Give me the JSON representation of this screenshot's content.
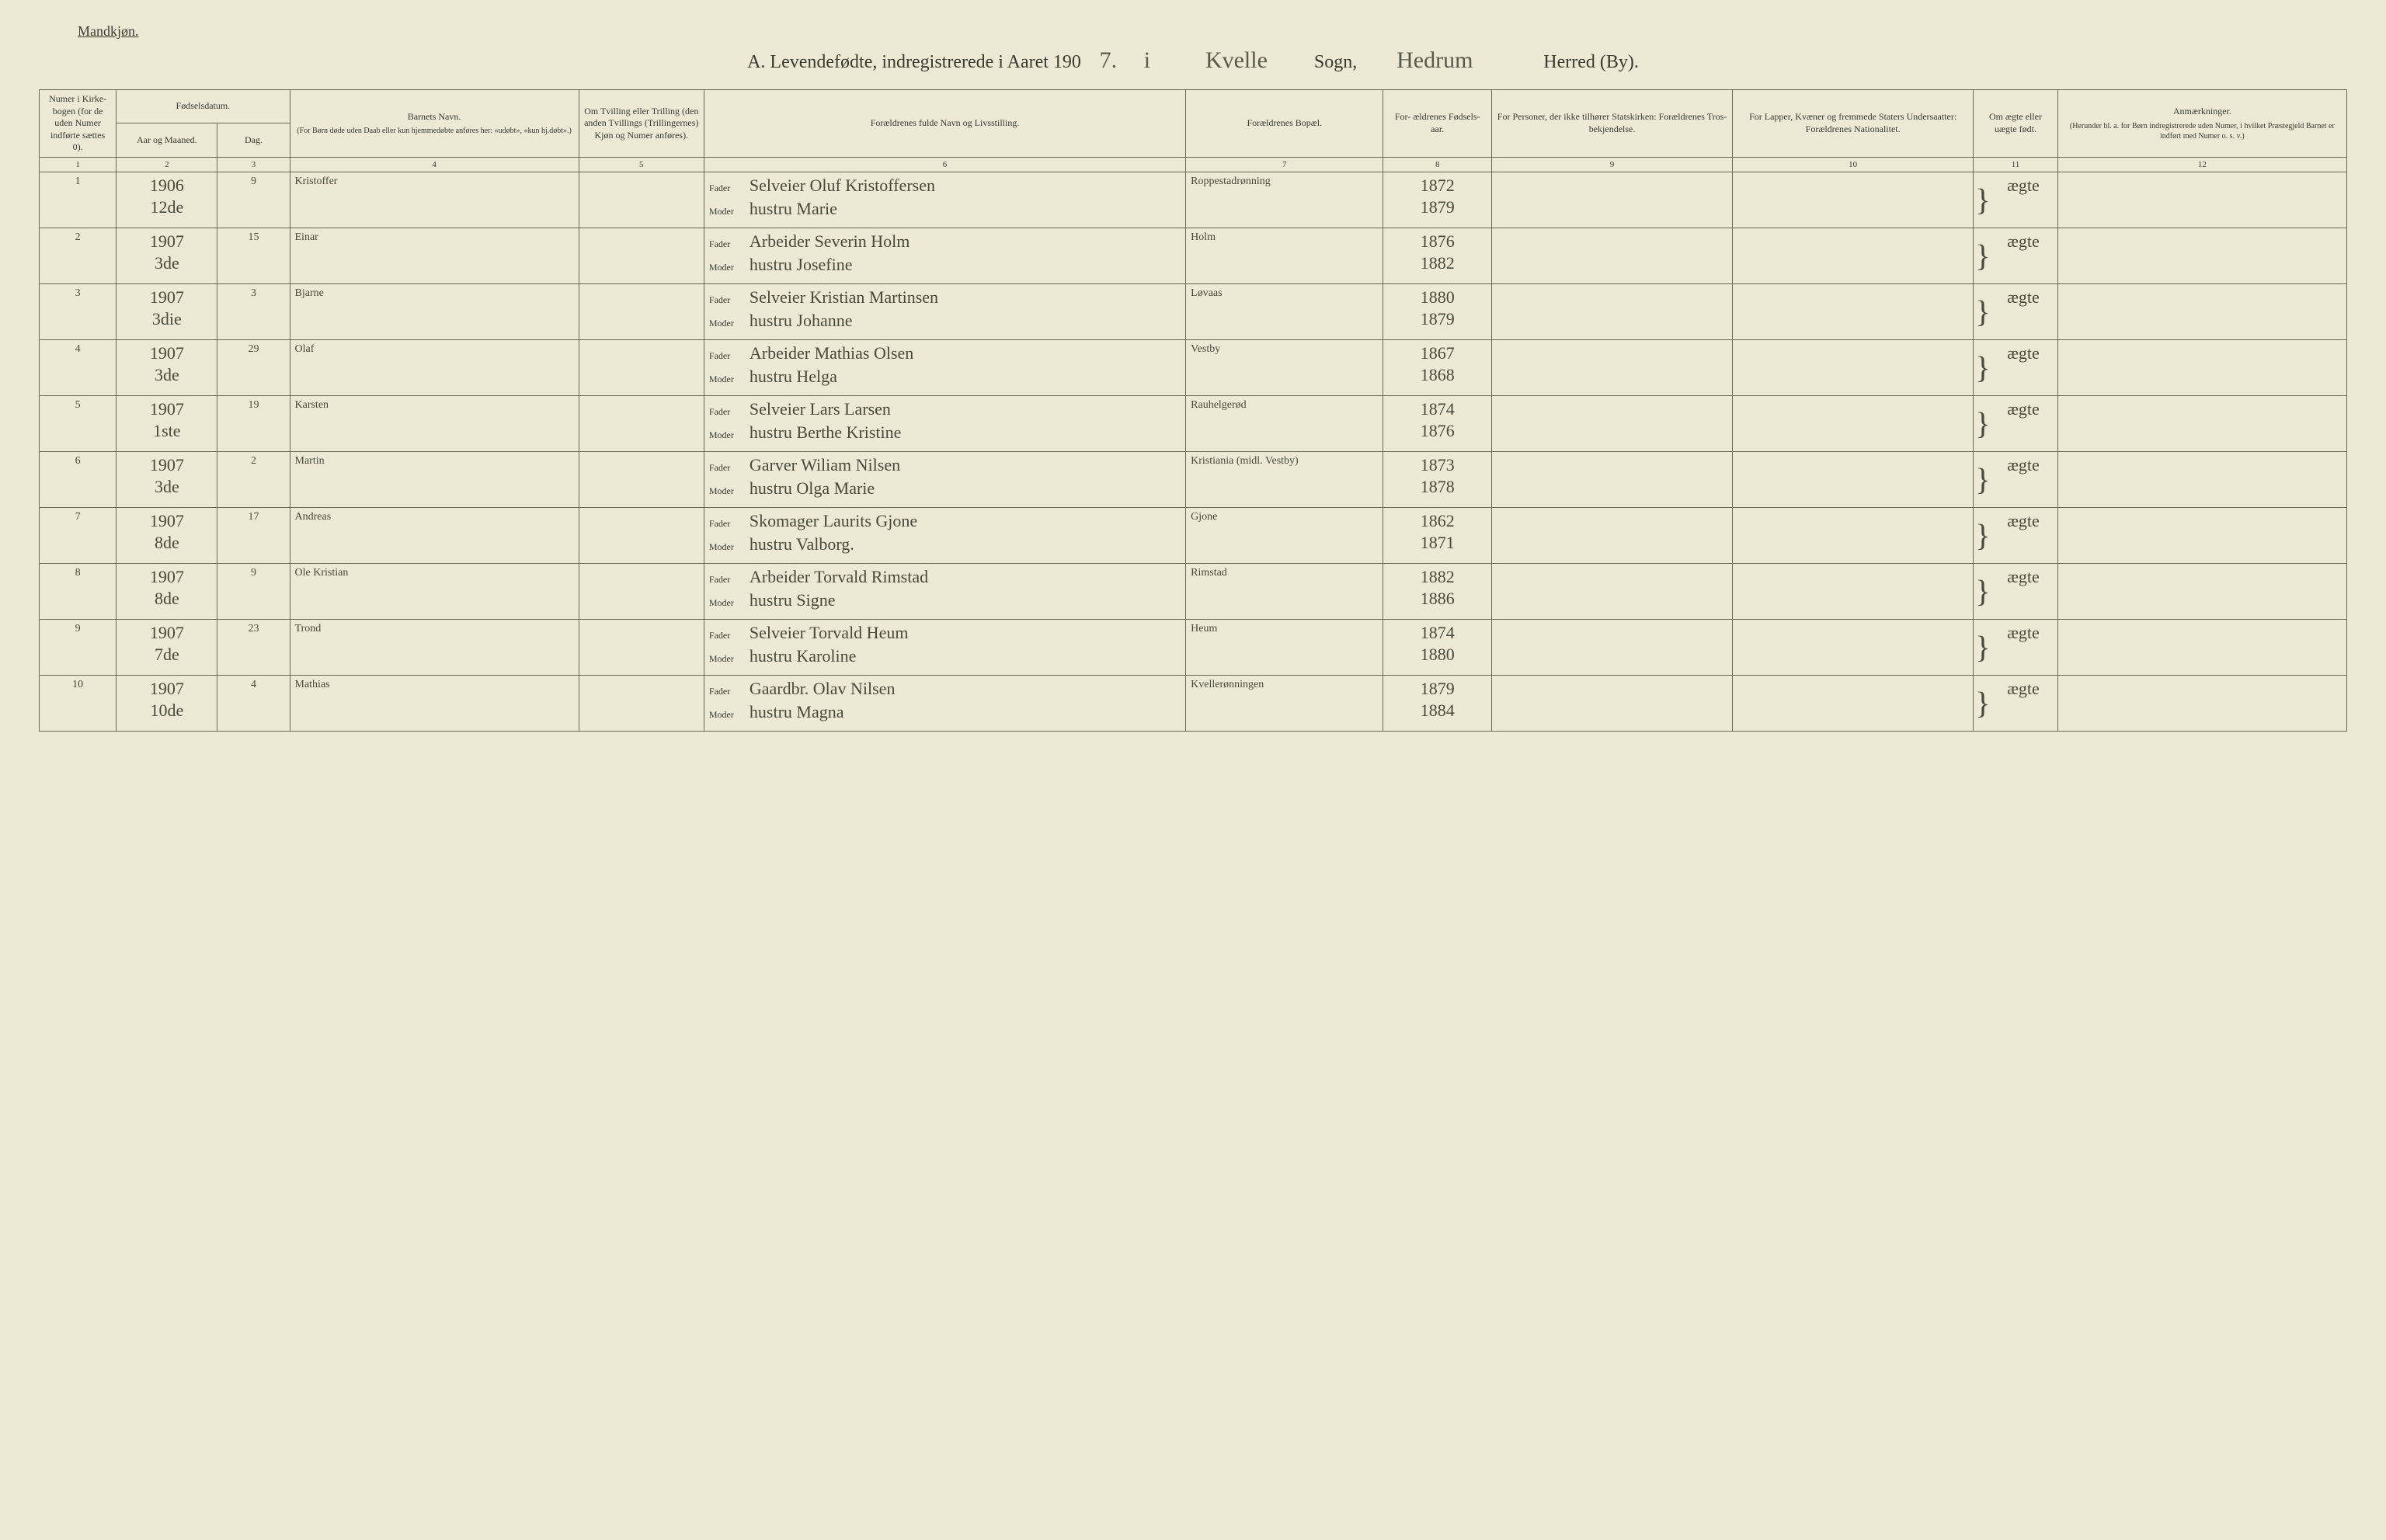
{
  "gender_label": "Mandkjøn.",
  "title_prefix": "A.  Levendefødte, indregistrerede i Aaret 190",
  "year_suffix": "7.",
  "i_word": "i",
  "sogn_name": "Kvelle",
  "sogn_label": "Sogn,",
  "herred_name": "Hedrum",
  "herred_label": "Herred (By).",
  "headers": {
    "c1": "Numer i Kirke- bogen (for de uden Numer indførte sættes 0).",
    "c2_top": "Fødselsdatum.",
    "c2a": "Aar og Maaned.",
    "c2b": "Dag.",
    "c4_top": "Barnets Navn.",
    "c4_sub": "(For Børn døde uden Daab eller kun hjemmedøbte anføres her: «udøbt», «kun hj.døbt».)",
    "c5": "Om Tvilling eller Trilling (den anden Tvillings (Trillingernes) Kjøn og Numer anføres).",
    "c6": "Forældrenes fulde Navn og Livsstilling.",
    "c7": "Forældrenes Bopæl.",
    "c8": "For- ældrenes Fødsels- aar.",
    "c9": "For Personer, der ikke tilhører Statskirken: Forældrenes Tros- bekjendelse.",
    "c10": "For Lapper, Kvæner og fremmede Staters Undersaatter: Forældrenes Nationalitet.",
    "c11": "Om ægte eller uægte født.",
    "c12_top": "Anmærkninger.",
    "c12_sub": "(Herunder bl. a. for Børn indregistrerede uden Numer, i hvilket Præstegjeld Barnet er indført med Numer o. s. v.)"
  },
  "colnums": [
    "1",
    "2",
    "3",
    "4",
    "5",
    "6",
    "7",
    "8",
    "9",
    "10",
    "11",
    "12"
  ],
  "fader_label": "Fader",
  "moder_label": "Moder",
  "rows": [
    {
      "n": "1",
      "ym": [
        "1906",
        "12de"
      ],
      "day": "9",
      "name": "Kristoffer",
      "fader": "Selveier Oluf Kristoffersen",
      "moder": "hustru Marie",
      "bopael": "Roppestadrønning",
      "f_year": "1872",
      "m_year": "1879",
      "aegte": "ægte"
    },
    {
      "n": "2",
      "ym": [
        "1907",
        "3de"
      ],
      "day": "15",
      "name": "Einar",
      "fader": "Arbeider Severin Holm",
      "moder": "hustru Josefine",
      "bopael": "Holm",
      "f_year": "1876",
      "m_year": "1882",
      "aegte": "ægte"
    },
    {
      "n": "3",
      "ym": [
        "1907",
        "3die"
      ],
      "day": "3",
      "name": "Bjarne",
      "fader": "Selveier Kristian Martinsen",
      "moder": "hustru Johanne",
      "bopael": "Løvaas",
      "f_year": "1880",
      "m_year": "1879",
      "aegte": "ægte"
    },
    {
      "n": "4",
      "ym": [
        "1907",
        "3de"
      ],
      "day": "29",
      "name": "Olaf",
      "fader": "Arbeider Mathias Olsen",
      "moder": "hustru Helga",
      "bopael": "Vestby",
      "f_year": "1867",
      "m_year": "1868",
      "aegte": "ægte"
    },
    {
      "n": "5",
      "ym": [
        "1907",
        "1ste"
      ],
      "day": "19",
      "name": "Karsten",
      "fader": "Selveier Lars Larsen",
      "moder": "hustru Berthe Kristine",
      "bopael": "Rauhelgerød",
      "f_year": "1874",
      "m_year": "1876",
      "aegte": "ægte"
    },
    {
      "n": "6",
      "ym": [
        "1907",
        "3de"
      ],
      "day": "2",
      "name": "Martin",
      "fader": "Garver Wiliam Nilsen",
      "moder": "hustru Olga Marie",
      "bopael": "Kristiania (midl. Vestby)",
      "f_year": "1873",
      "m_year": "1878",
      "aegte": "ægte"
    },
    {
      "n": "7",
      "ym": [
        "1907",
        "8de"
      ],
      "day": "17",
      "name": "Andreas",
      "fader": "Skomager Laurits Gjone",
      "moder": "hustru Valborg.",
      "bopael": "Gjone",
      "f_year": "1862",
      "m_year": "1871",
      "aegte": "ægte"
    },
    {
      "n": "8",
      "ym": [
        "1907",
        "8de"
      ],
      "day": "9",
      "name": "Ole Kristian",
      "fader": "Arbeider Torvald Rimstad",
      "moder": "hustru Signe",
      "bopael": "Rimstad",
      "f_year": "1882",
      "m_year": "1886",
      "aegte": "ægte"
    },
    {
      "n": "9",
      "ym": [
        "1907",
        "7de"
      ],
      "day": "23",
      "name": "Trond",
      "fader": "Selveier Torvald Heum",
      "moder": "hustru Karoline",
      "bopael": "Heum",
      "f_year": "1874",
      "m_year": "1880",
      "aegte": "ægte"
    },
    {
      "n": "10",
      "ym": [
        "1907",
        "10de"
      ],
      "day": "4",
      "name": "Mathias",
      "fader": "Gaardbr. Olav Nilsen",
      "moder": "hustru Magna",
      "bopael": "Kvellerønningen",
      "f_year": "1879",
      "m_year": "1884",
      "aegte": "ægte"
    }
  ]
}
